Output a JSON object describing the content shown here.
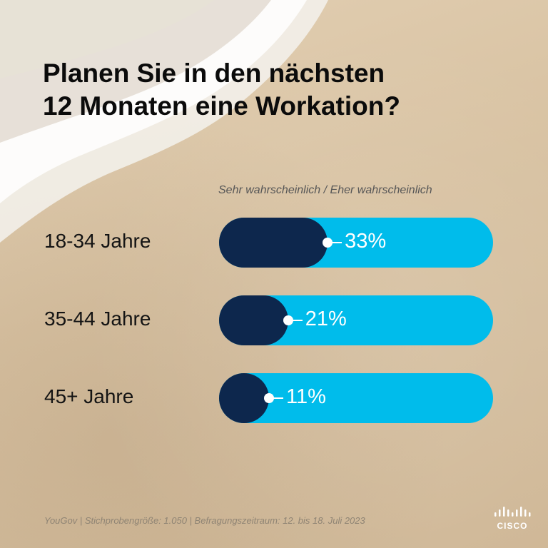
{
  "title_lines": [
    "Planen Sie in den nächsten",
    "12 Monaten eine Workation?"
  ],
  "legend": "Sehr wahrscheinlich / Eher wahrscheinlich",
  "source": "YouGov | Stichprobengröße: 1.050 | Befragungszeitraum: 12. bis 18. Juli 2023",
  "logo": {
    "text": "CISCO"
  },
  "colors": {
    "track": "#00bceb",
    "fill": "#0d274d",
    "text": "#141414"
  },
  "chart_data": {
    "type": "bar",
    "orientation": "horizontal",
    "categories": [
      "18-34 Jahre",
      "35-44 Jahre",
      "45+ Jahre"
    ],
    "values": [
      33,
      21,
      11
    ],
    "value_labels": [
      "33%",
      "21%",
      "11%"
    ],
    "unit": "%",
    "xlim": [
      0,
      100
    ],
    "grid": false
  }
}
